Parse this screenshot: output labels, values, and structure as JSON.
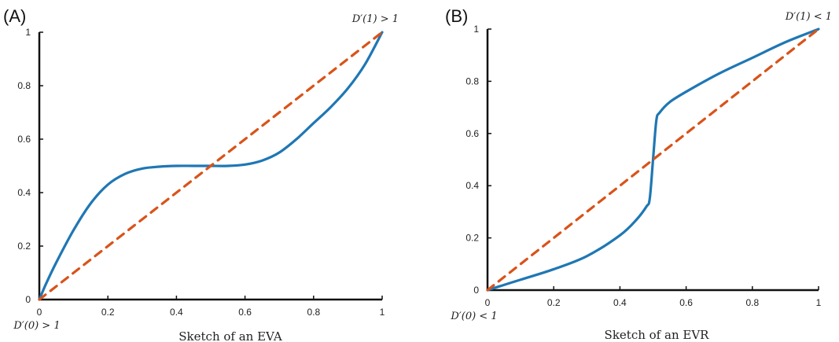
{
  "chart_data": [
    {
      "type": "line",
      "panel_label": "(A)",
      "xlabel": "Sketch of an EVA",
      "ylabel": "",
      "xlim": [
        0,
        1
      ],
      "ylim": [
        0,
        1
      ],
      "x_ticks": [
        "0",
        "0.2",
        "0.4",
        "0.6",
        "0.8",
        "1"
      ],
      "y_ticks": [
        "0",
        "0.2",
        "0.4",
        "0.6",
        "0.8",
        "1"
      ],
      "annotations": {
        "top_right": "D′(1) > 1",
        "bottom_left": "D′(0) > 1"
      },
      "grid": false,
      "series": [
        {
          "style": "solid",
          "color": "#1f77b4",
          "x": [
            0,
            0.02,
            0.05,
            0.1,
            0.15,
            0.2,
            0.25,
            0.3,
            0.35,
            0.4,
            0.45,
            0.5,
            0.55,
            0.6,
            0.65,
            0.7,
            0.75,
            0.8,
            0.85,
            0.9,
            0.95,
            1.0
          ],
          "y": [
            0,
            0.06,
            0.14,
            0.26,
            0.36,
            0.43,
            0.47,
            0.49,
            0.497,
            0.5,
            0.5,
            0.5,
            0.5,
            0.505,
            0.52,
            0.55,
            0.6,
            0.66,
            0.72,
            0.79,
            0.88,
            1.0
          ]
        },
        {
          "style": "dashed",
          "color": "#d95319",
          "x": [
            0,
            1
          ],
          "y": [
            0,
            1
          ]
        }
      ]
    },
    {
      "type": "line",
      "panel_label": "(B)",
      "xlabel": "Sketch of an EVR",
      "ylabel": "",
      "xlim": [
        0,
        1
      ],
      "ylim": [
        0,
        1
      ],
      "x_ticks": [
        "0",
        "0.2",
        "0.4",
        "0.6",
        "0.8",
        "1"
      ],
      "y_ticks": [
        "0",
        "0.2",
        "0.4",
        "0.6",
        "0.8",
        "1"
      ],
      "annotations": {
        "top_right": "D′(1) < 1",
        "bottom_left": "D′(0) < 1"
      },
      "grid": false,
      "series": [
        {
          "style": "solid",
          "color": "#1f77b4",
          "x": [
            0,
            0.05,
            0.1,
            0.2,
            0.3,
            0.4,
            0.45,
            0.48,
            0.49,
            0.5,
            0.51,
            0.52,
            0.55,
            0.6,
            0.7,
            0.8,
            0.9,
            1.0
          ],
          "y": [
            0,
            0.02,
            0.04,
            0.08,
            0.13,
            0.21,
            0.27,
            0.32,
            0.35,
            0.5,
            0.65,
            0.68,
            0.72,
            0.76,
            0.83,
            0.89,
            0.95,
            1.0
          ]
        },
        {
          "style": "dashed",
          "color": "#d95319",
          "x": [
            0,
            1
          ],
          "y": [
            0,
            1
          ]
        }
      ]
    }
  ]
}
